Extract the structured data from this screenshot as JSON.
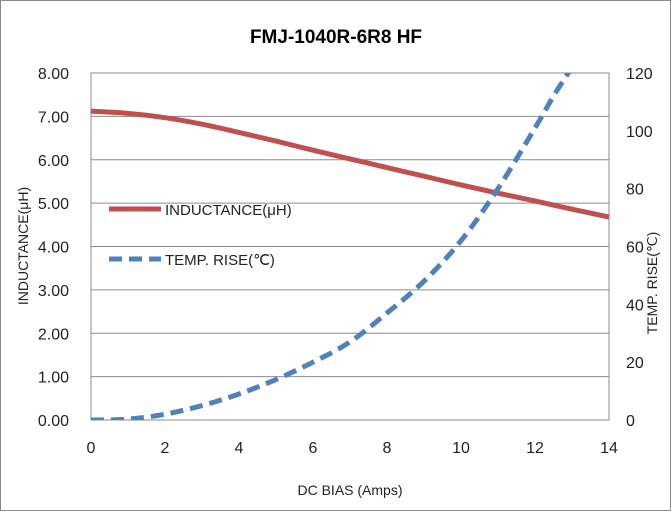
{
  "chart_data": {
    "type": "line",
    "title": "FMJ-1040R-6R8 HF",
    "xlabel": "DC BIAS  (Amps)",
    "ylabel_left": "INDUCTANCE(μH)",
    "ylabel_right": "TEMP.  RISE(℃)",
    "xlim": [
      0,
      14
    ],
    "ylim_left": [
      0,
      8
    ],
    "ylim_right": [
      0,
      120
    ],
    "x_ticks": [
      "0",
      "2",
      "4",
      "6",
      "8",
      "10",
      "12",
      "14"
    ],
    "y_left_ticks": [
      "0.00",
      "1.00",
      "2.00",
      "3.00",
      "4.00",
      "5.00",
      "6.00",
      "7.00",
      "8.00"
    ],
    "y_right_ticks": [
      "0",
      "20",
      "40",
      "60",
      "80",
      "100",
      "120"
    ],
    "grid": "horizontal",
    "legend_position": "middle-left",
    "series": [
      {
        "name": "INDUCTANCE(μH)",
        "axis": "left",
        "style": "solid",
        "color": "#c0504d",
        "x": [
          0,
          1,
          2,
          3,
          4,
          5,
          6,
          7,
          8,
          9,
          10,
          11,
          12,
          13,
          14
        ],
        "y": [
          7.12,
          7.07,
          6.97,
          6.82,
          6.63,
          6.43,
          6.22,
          6.02,
          5.82,
          5.62,
          5.42,
          5.23,
          5.05,
          4.86,
          4.68
        ]
      },
      {
        "name": "TEMP. RISE(℃)",
        "axis": "right",
        "style": "dashed",
        "color": "#4f81bd",
        "x": [
          0,
          1,
          2,
          3,
          4,
          5,
          6,
          7,
          8,
          9,
          10,
          11,
          12,
          12.5,
          13
        ],
        "y": [
          0,
          0.3,
          2,
          5,
          9,
          14,
          20,
          27,
          37,
          48,
          62,
          80,
          101,
          112,
          122
        ]
      }
    ]
  }
}
